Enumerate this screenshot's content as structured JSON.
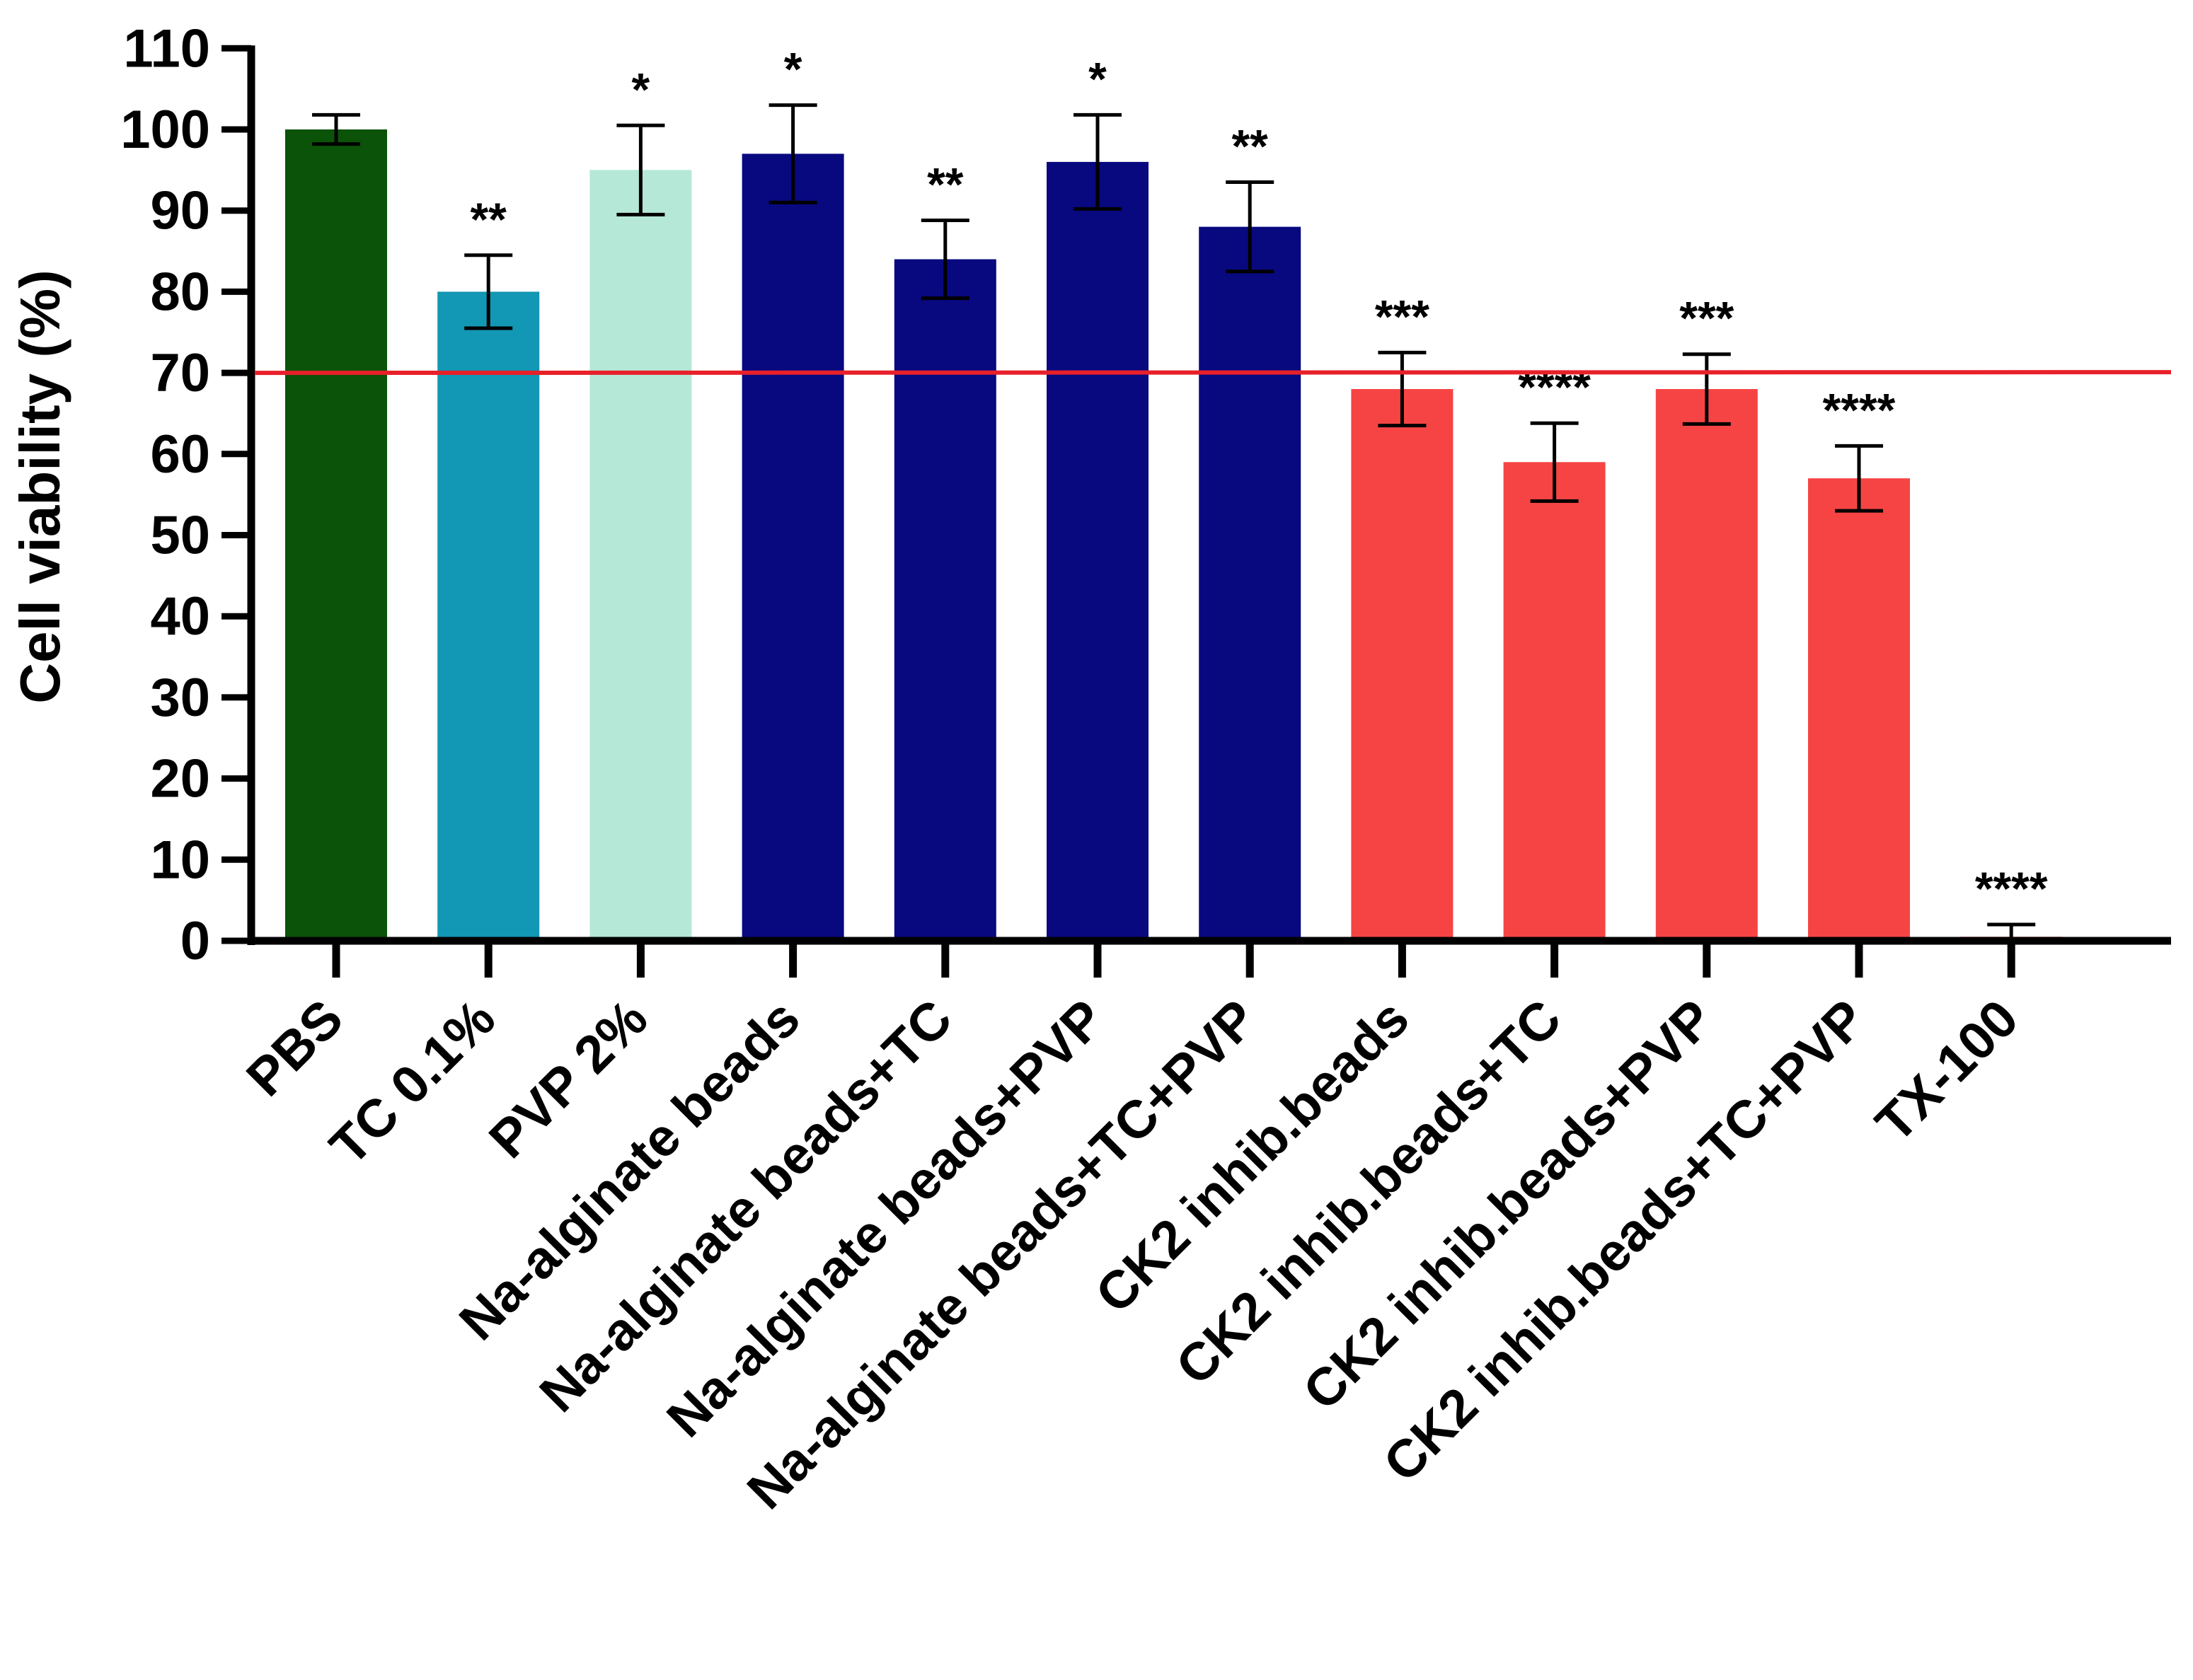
{
  "chart_data": {
    "type": "bar",
    "title": "",
    "xlabel": "",
    "ylabel": "Cell viability (%)",
    "ylim": [
      0,
      110
    ],
    "yticks": [
      0,
      10,
      20,
      30,
      40,
      50,
      60,
      70,
      80,
      90,
      100,
      110
    ],
    "grid": false,
    "threshold": {
      "value": 70,
      "color": "#e8202a"
    },
    "categories": [
      "PBS",
      "TC 0.1%",
      "PVP 2%",
      "Na-alginate beads",
      "Na-alginate beads+TC",
      "Na-alginate beads+PVP",
      "Na-alginate beads+TC+PVP",
      "CK2 inhib.beads",
      "CK2 inhib.beads+TC",
      "CK2 inhib.beads+PVP",
      "CK2 inhib.beads+TC+PVP",
      "TX-100"
    ],
    "values": [
      100,
      80,
      95,
      97,
      84,
      96,
      88,
      68,
      59,
      68,
      57,
      0.5
    ],
    "errors": [
      1.8,
      4.5,
      5.5,
      6,
      4.8,
      5.8,
      5.5,
      4.5,
      4.8,
      4.3,
      4,
      1.5
    ],
    "significance": [
      "",
      "**",
      "*",
      "*",
      "**",
      "*",
      "**",
      "***",
      "****",
      "***",
      "****",
      "****"
    ],
    "colors": [
      "#0b5308",
      "#1297b4",
      "#b5e8d7",
      "#08097f",
      "#08097f",
      "#08097f",
      "#08097f",
      "#f64444",
      "#f64444",
      "#f64444",
      "#f64444",
      "#f64444"
    ]
  }
}
